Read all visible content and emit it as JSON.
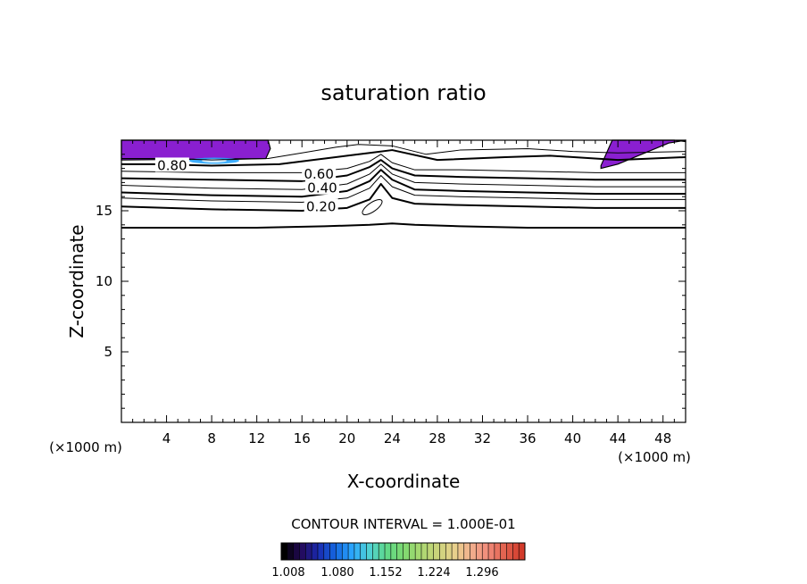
{
  "chart_data": {
    "type": "contour",
    "title": "saturation ratio",
    "xlabel": "X-coordinate",
    "ylabel": "Z-coordinate",
    "x_unit_label": "(×1000 m)",
    "y_unit_label": "(×1000 m)",
    "xlim": [
      0,
      50
    ],
    "ylim": [
      0,
      20
    ],
    "x_ticks": [
      4,
      8,
      12,
      16,
      20,
      24,
      28,
      32,
      36,
      40,
      44,
      48
    ],
    "y_ticks": [
      5,
      10,
      15
    ],
    "contour_interval_text": "CONTOUR INTERVAL = 1.000E-01",
    "contour_labels": [
      {
        "text": "0.80",
        "x": 4.5,
        "z": 18.2
      },
      {
        "text": "0.60",
        "x": 17.5,
        "z": 17.6
      },
      {
        "text": "0.40",
        "x": 17.8,
        "z": 16.6
      },
      {
        "text": "0.20",
        "x": 17.7,
        "z": 15.3
      }
    ],
    "contours": [
      {
        "level": 0.0,
        "x": [
          0,
          6,
          12,
          18,
          22,
          24,
          26,
          30,
          36,
          42,
          50
        ],
        "z": [
          13.8,
          13.8,
          13.8,
          13.9,
          14.0,
          14.1,
          14.0,
          13.9,
          13.8,
          13.8,
          13.8
        ]
      },
      {
        "level": 0.2,
        "x": [
          0,
          8,
          16,
          20,
          22,
          23,
          24,
          26,
          30,
          36,
          42,
          50
        ],
        "z": [
          15.3,
          15.1,
          15.0,
          15.2,
          15.8,
          16.9,
          15.9,
          15.5,
          15.4,
          15.3,
          15.2,
          15.2
        ]
      },
      {
        "level": 0.3,
        "x": [
          0,
          8,
          16,
          20,
          22,
          23,
          24,
          26,
          30,
          36,
          42,
          50
        ],
        "z": [
          15.9,
          15.7,
          15.6,
          15.9,
          16.6,
          17.5,
          16.7,
          16.1,
          16.0,
          15.9,
          15.8,
          15.8
        ]
      },
      {
        "level": 0.4,
        "x": [
          0,
          8,
          16,
          20,
          22,
          23,
          24,
          26,
          30,
          36,
          42,
          50
        ],
        "z": [
          16.3,
          16.1,
          16.0,
          16.4,
          17.1,
          17.9,
          17.2,
          16.5,
          16.4,
          16.3,
          16.2,
          16.2
        ]
      },
      {
        "level": 0.5,
        "x": [
          0,
          8,
          16,
          20,
          22,
          23,
          24,
          26,
          30,
          36,
          42,
          50
        ],
        "z": [
          16.8,
          16.6,
          16.5,
          16.9,
          17.6,
          18.3,
          17.6,
          17.0,
          16.9,
          16.8,
          16.7,
          16.7
        ]
      },
      {
        "level": 0.6,
        "x": [
          0,
          8,
          16,
          20,
          22,
          23,
          24,
          26,
          30,
          36,
          42,
          50
        ],
        "z": [
          17.3,
          17.2,
          17.1,
          17.5,
          18.1,
          18.6,
          18.0,
          17.5,
          17.4,
          17.3,
          17.2,
          17.2
        ]
      },
      {
        "level": 0.7,
        "x": [
          0,
          8,
          16,
          20,
          22,
          23,
          24,
          26,
          30,
          36,
          42,
          50
        ],
        "z": [
          17.8,
          17.7,
          17.7,
          18.0,
          18.5,
          19.0,
          18.4,
          17.9,
          17.9,
          17.8,
          17.7,
          17.7
        ]
      },
      {
        "level": 0.8,
        "x": [
          0,
          3,
          8,
          14,
          17,
          20,
          22,
          24,
          28,
          34,
          38,
          44,
          50
        ],
        "z": [
          18.3,
          18.3,
          18.2,
          18.3,
          18.6,
          18.9,
          19.1,
          19.3,
          18.6,
          18.8,
          18.9,
          18.6,
          18.8
        ]
      },
      {
        "level": 0.9,
        "x": [
          0,
          4,
          8,
          13,
          16,
          19,
          21,
          24,
          27,
          30,
          36,
          40,
          44,
          50
        ],
        "z": [
          18.7,
          18.7,
          18.6,
          18.7,
          19.1,
          19.5,
          19.7,
          19.6,
          19.0,
          19.3,
          19.4,
          19.2,
          19.1,
          19.2
        ]
      }
    ],
    "supersaturated_regions": [
      {
        "x": [
          0,
          3,
          6,
          9,
          11.5,
          13,
          13.2,
          12.8,
          0
        ],
        "z": [
          20,
          20,
          20,
          20,
          20,
          20,
          19.4,
          18.7,
          18.6
        ]
      },
      {
        "x": [
          42.5,
          44,
          45.5,
          47,
          48.5,
          50,
          50,
          49,
          47,
          45,
          43.5,
          42.5
        ],
        "z": [
          18.0,
          18.3,
          18.8,
          19.3,
          19.8,
          20,
          19.9,
          20,
          20,
          20,
          20,
          18.2
        ]
      }
    ],
    "colorbar": {
      "colors": [
        "#000000",
        "#240a5a",
        "#1a2ab0",
        "#1466e0",
        "#2aa6ff",
        "#4fd1d4",
        "#5fd98a",
        "#7cd870",
        "#a9d870",
        "#c9d37a",
        "#e7d28c",
        "#f2b08e",
        "#f18a7a",
        "#e2614e",
        "#d23a2a"
      ],
      "labels": [
        "1.008",
        "1.080",
        "1.152",
        "1.224",
        "1.296"
      ]
    }
  }
}
